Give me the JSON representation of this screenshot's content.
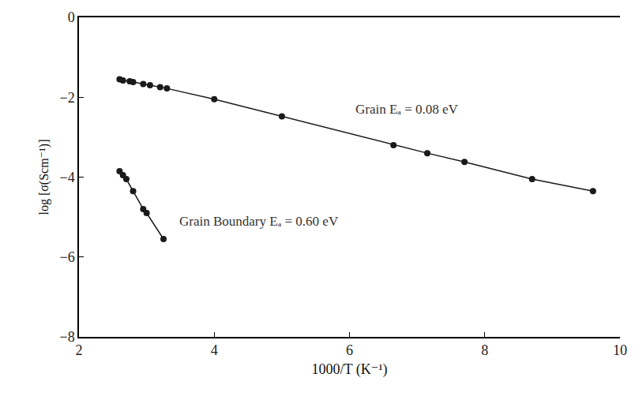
{
  "chart_data": {
    "type": "line",
    "x_label": "1000/T (K⁻¹)",
    "y_label": "log [σ(Scm⁻¹)]",
    "xlim": [
      2,
      10
    ],
    "xticks": [
      2,
      4,
      6,
      8,
      10
    ],
    "ylim": [
      -8,
      0
    ],
    "yticks": [
      -8,
      -6,
      -4,
      -2,
      0
    ],
    "grid": false,
    "marker": "circle",
    "line_style": "solid",
    "series": [
      {
        "color": "#1a1a1a",
        "x": [
          2.6,
          2.65,
          2.75,
          2.8,
          2.95,
          3.05,
          3.2,
          3.3,
          4.0,
          5.0,
          6.65,
          7.15,
          7.7,
          8.7,
          9.6
        ],
        "values": [
          -1.55,
          -1.58,
          -1.6,
          -1.62,
          -1.67,
          -1.7,
          -1.75,
          -1.78,
          -2.05,
          -2.48,
          -3.2,
          -3.4,
          -3.62,
          -4.05,
          -4.35
        ]
      },
      {
        "color": "#1a1a1a",
        "x": [
          2.6,
          2.65,
          2.7,
          2.8,
          2.95,
          3.0,
          3.25
        ],
        "values": [
          -3.85,
          -3.95,
          -4.05,
          -4.35,
          -4.8,
          -4.9,
          -5.55
        ]
      }
    ],
    "annotations": [
      "Grain Eₐ = 0.08 eV",
      "Grain Boundary Eₐ = 0.60 eV"
    ]
  }
}
